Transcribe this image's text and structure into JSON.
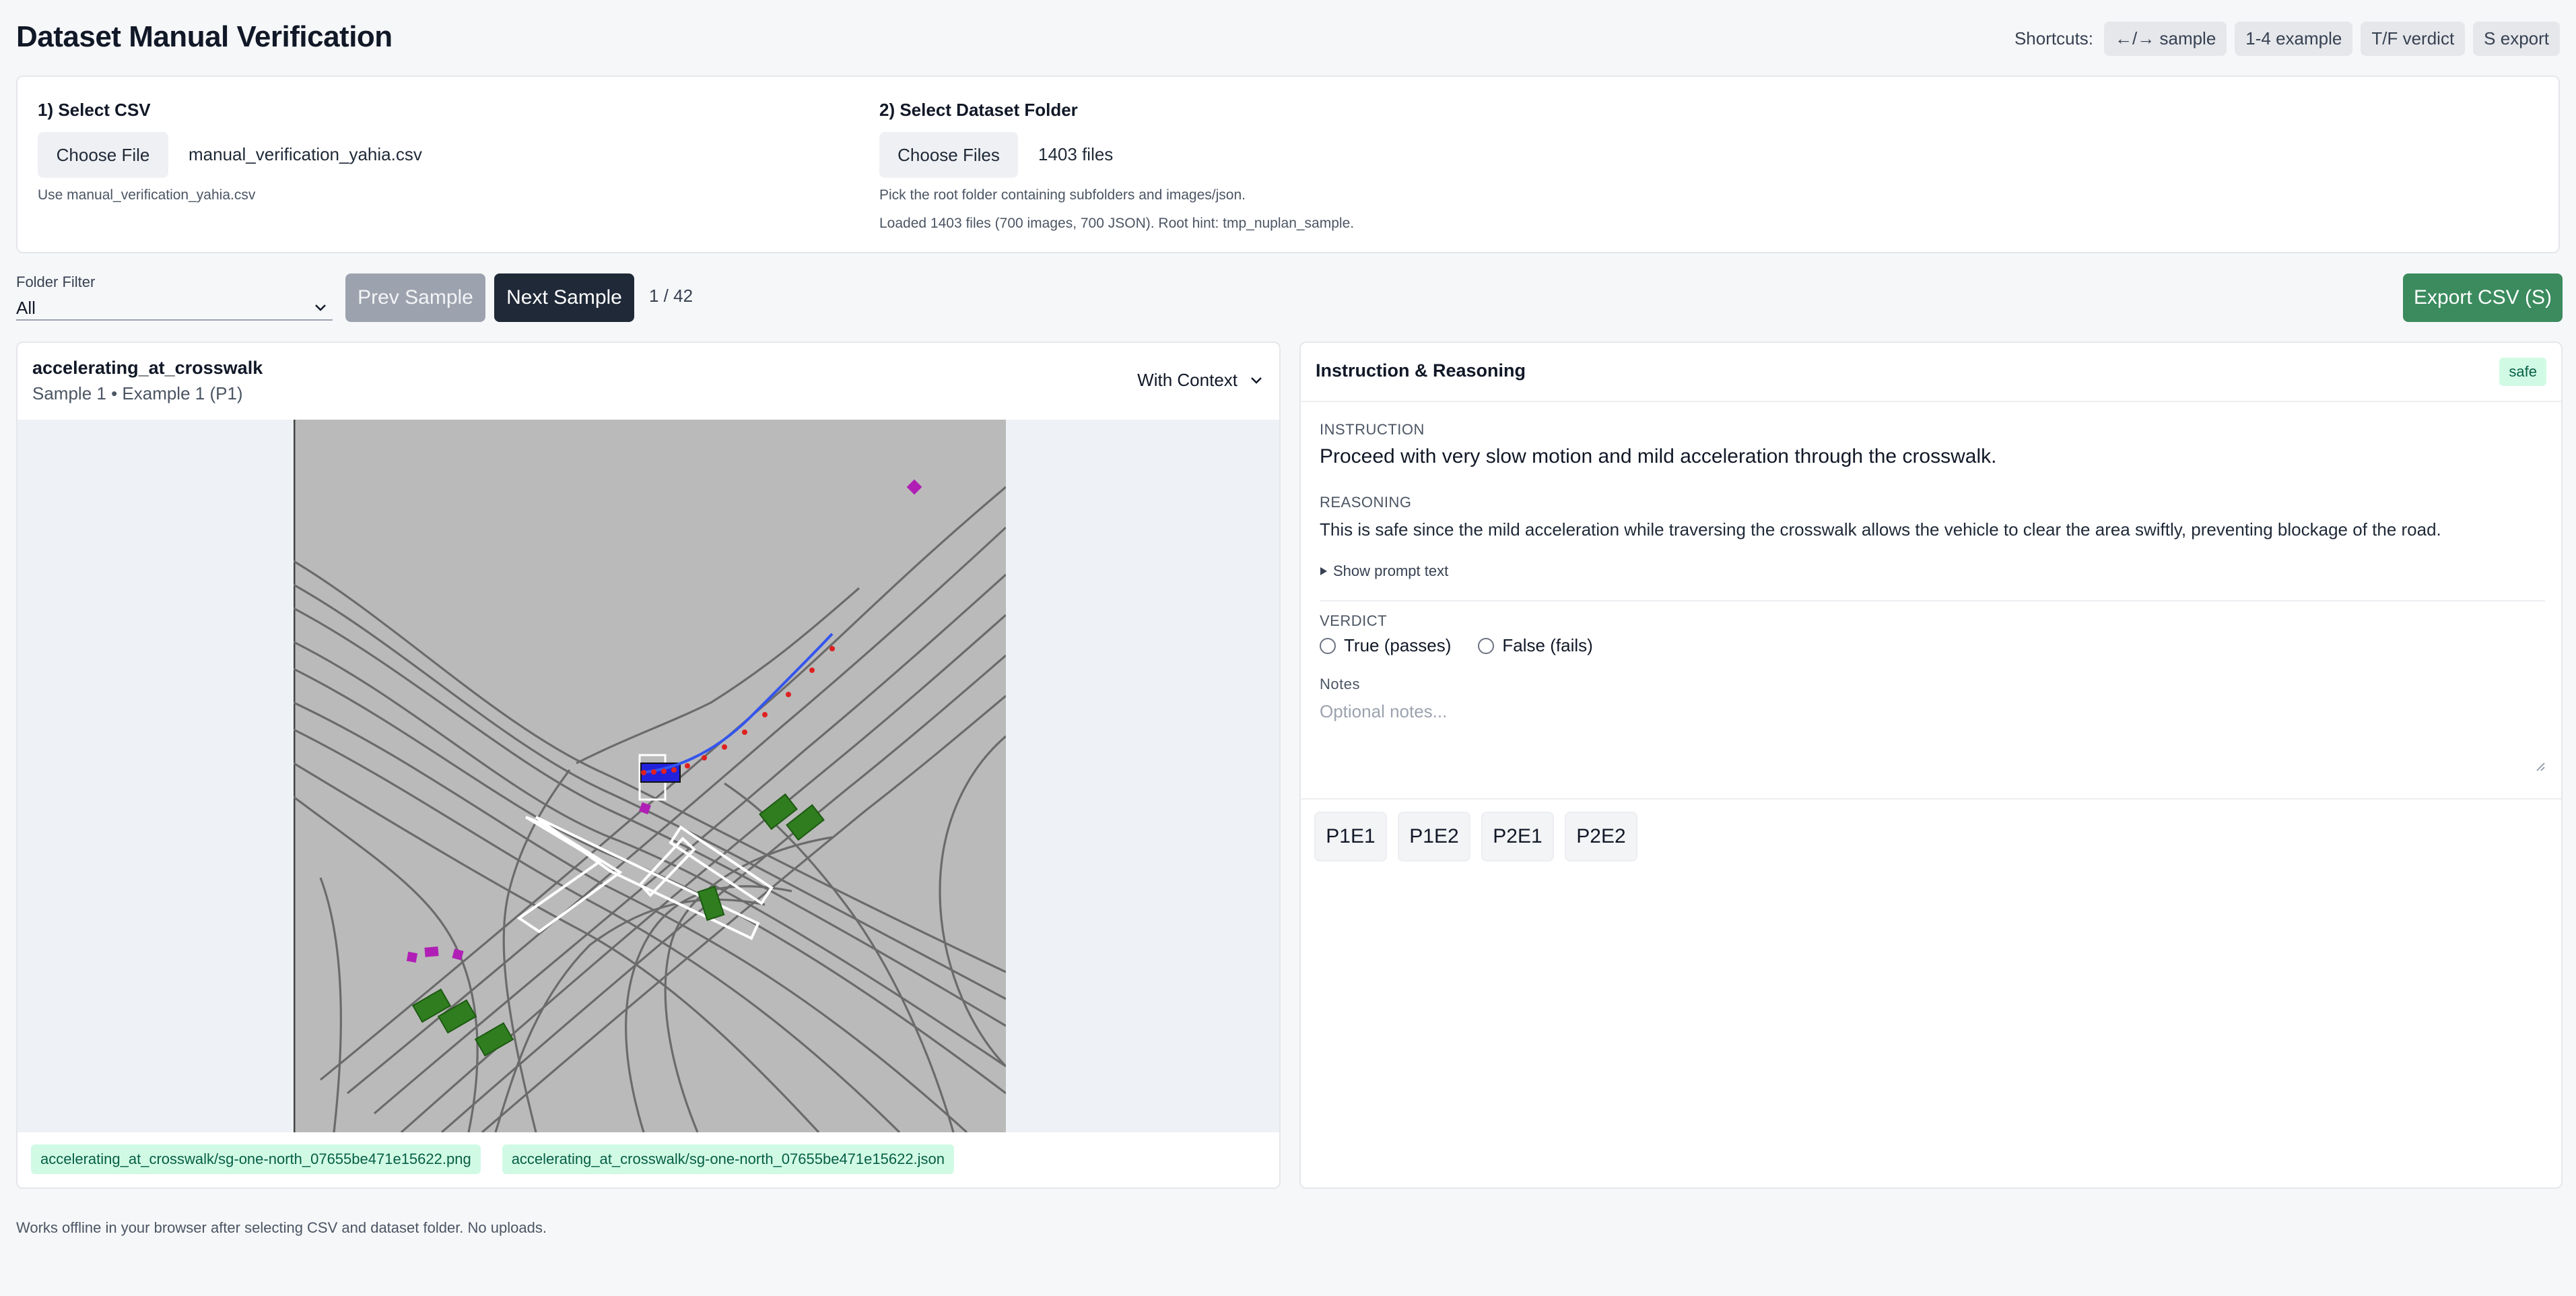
{
  "header": {
    "title": "Dataset Manual Verification",
    "shortcuts_label": "Shortcuts:",
    "shortcuts": [
      "←/→ sample",
      "1-4 example",
      "T/F verdict",
      "S export"
    ]
  },
  "csv_section": {
    "title": "1) Select CSV",
    "button": "Choose File",
    "file_name": "manual_verification_yahia.csv",
    "hint": "Use manual_verification_yahia.csv"
  },
  "folder_section": {
    "title": "2) Select Dataset Folder",
    "button": "Choose Files",
    "file_count": "1403 files",
    "hint1": "Pick the root folder containing subfolders and images/json.",
    "hint2": "Loaded 1403 files (700 images, 700 JSON). Root hint: tmp_nuplan_sample."
  },
  "controls": {
    "filter_label": "Folder Filter",
    "filter_value": "All",
    "prev": "Prev Sample",
    "next": "Next Sample",
    "counter": "1 / 42",
    "export": "Export CSV (S)"
  },
  "sample": {
    "name": "accelerating_at_crosswalk",
    "subtitle": "Sample 1 • Example 1 (P1)",
    "context_mode": "With Context",
    "files": [
      "accelerating_at_crosswalk/sg-one-north_07655be471e15622.png",
      "accelerating_at_crosswalk/sg-one-north_07655be471e15622.json"
    ]
  },
  "reasoning_panel": {
    "title": "Instruction & Reasoning",
    "badge": "safe",
    "instruction_label": "INSTRUCTION",
    "instruction": "Proceed with very slow motion and mild acceleration through the crosswalk.",
    "reasoning_label": "REASONING",
    "reasoning": "This is safe since the mild acceleration while traversing the crosswalk allows the vehicle to clear the area swiftly, preventing blockage of the road.",
    "prompt_toggle": "Show prompt text",
    "verdict_label": "VERDICT",
    "verdict_true": "True (passes)",
    "verdict_false": "False (fails)",
    "notes_label": "Notes",
    "notes_placeholder": "Optional notes...",
    "examples": [
      "P1E1",
      "P1E2",
      "P2E1",
      "P2E2"
    ]
  },
  "footer": {
    "text": "Works offline in your browser after selecting CSV and dataset folder. No uploads."
  },
  "colors": {
    "export_green": "#3b8b5e",
    "next_dark": "#1f2937",
    "safe_badge_bg": "#d1fae5",
    "scene_bg": "#bababa",
    "agent_green": "#2f7d1f",
    "pedestrian_magenta": "#b01fb5",
    "ego_blue": "#2222dd",
    "trajectory_red": "#e02020"
  }
}
